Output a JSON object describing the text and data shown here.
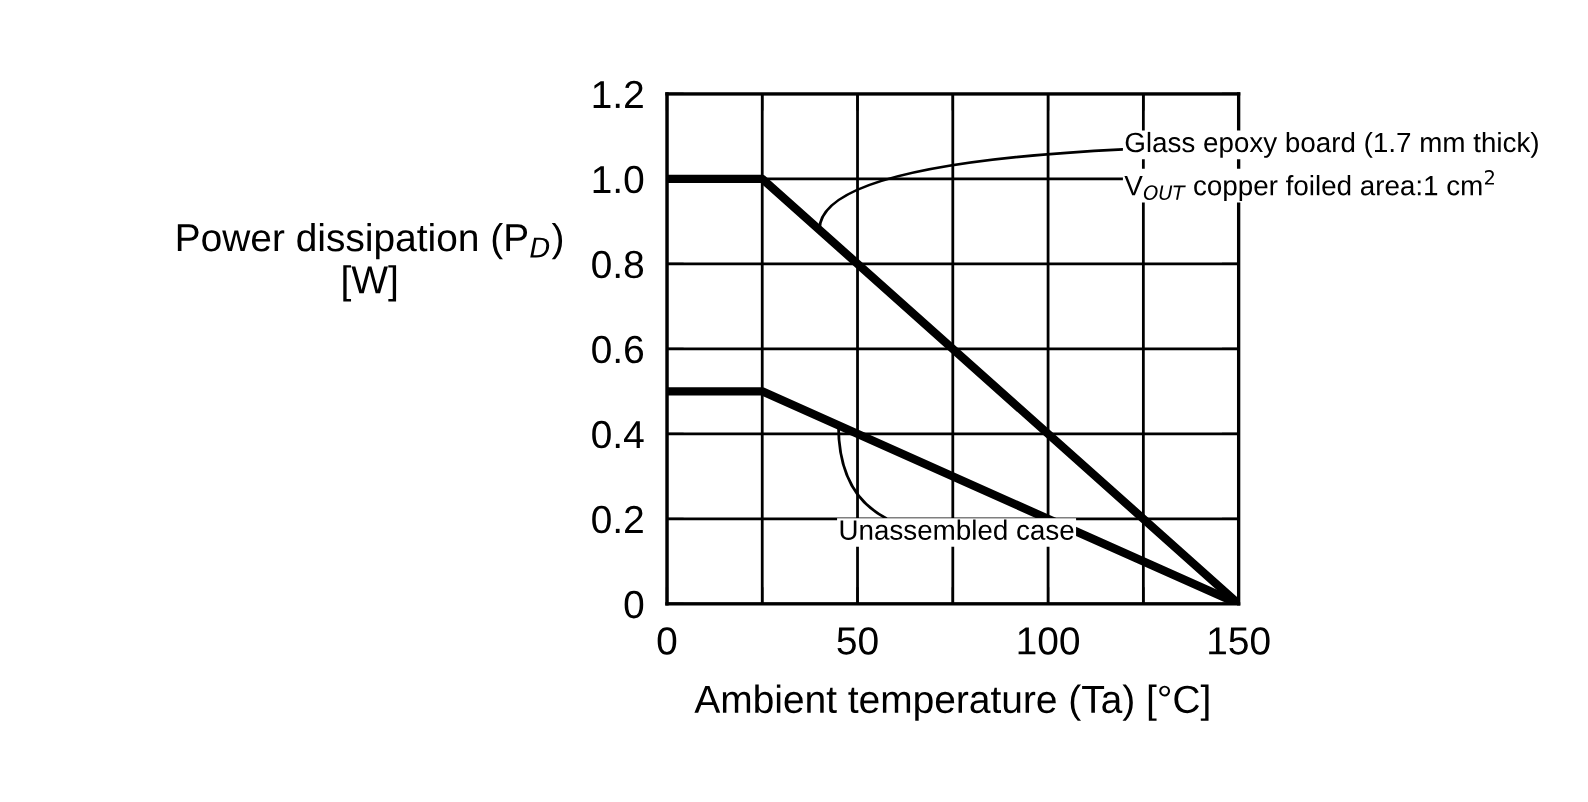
{
  "chart_data": {
    "type": "line",
    "xlabel": "Ambient temperature (Ta) [°C]",
    "ylabel": "Power dissipation (P$_{D}$)\n[W]",
    "x": [
      0,
      25,
      150
    ],
    "series": [
      {
        "color": "#000000",
        "values": [
          1.0,
          1.0,
          0
        ]
      },
      {
        "color": "#000000",
        "values": [
          0.5,
          0.5,
          0
        ]
      }
    ],
    "xlim": [
      0,
      150
    ],
    "xticks": [
      0,
      {
        "value": 25,
        "label": null
      },
      50,
      {
        "value": 75,
        "label": null
      },
      100,
      {
        "value": 125,
        "label": null
      },
      150
    ],
    "ylim": [
      0,
      1.2
    ],
    "yticks": [
      0,
      0.2,
      0.4,
      0.6,
      0.8,
      {
        "value": 1.0,
        "label": "1.0"
      },
      1.2
    ],
    "grid": true,
    "legend": false,
    "marker": "none",
    "line_style": "solid",
    "annotations": [
      {
        "text": "Glass epoxy board (1.7 mm thick)",
        "x": 40,
        "y": 0.88
      },
      "V$_{OUT}$ copper foiled area:1 cm$^{2}$",
      {
        "text": "Unassembled case",
        "x": 45,
        "y": 0.42
      }
    ]
  }
}
